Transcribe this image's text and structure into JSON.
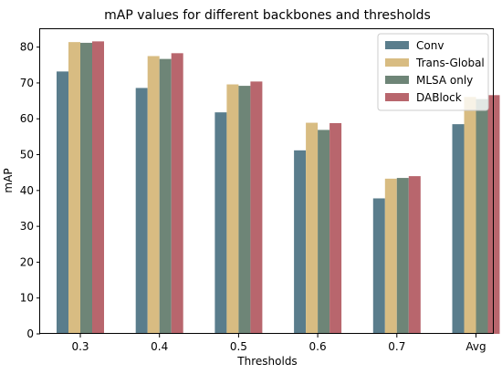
{
  "chart_data": {
    "type": "bar",
    "title": "mAP values for different backbones and thresholds",
    "xlabel": "Thresholds",
    "ylabel": "mAP",
    "categories": [
      "0.3",
      "0.4",
      "0.5",
      "0.6",
      "0.7",
      "Avg"
    ],
    "ylim": [
      0,
      85
    ],
    "yticks": [
      0,
      10,
      20,
      30,
      40,
      50,
      60,
      70,
      80
    ],
    "grid": false,
    "legend_position": "top-right",
    "series": [
      {
        "name": "Conv",
        "color": "#5a7d8c",
        "values": [
          73.2,
          68.6,
          61.8,
          51.2,
          37.8,
          58.5
        ]
      },
      {
        "name": "Trans-Global",
        "color": "#d8bc82",
        "values": [
          81.4,
          77.5,
          69.6,
          58.9,
          43.3,
          66.1
        ]
      },
      {
        "name": "MLSA only",
        "color": "#6e8577",
        "values": [
          81.2,
          76.7,
          69.2,
          56.9,
          43.5,
          65.5
        ]
      },
      {
        "name": "DABlock",
        "color": "#b8666d",
        "values": [
          81.6,
          78.3,
          70.4,
          58.8,
          44.0,
          66.6
        ]
      }
    ]
  }
}
